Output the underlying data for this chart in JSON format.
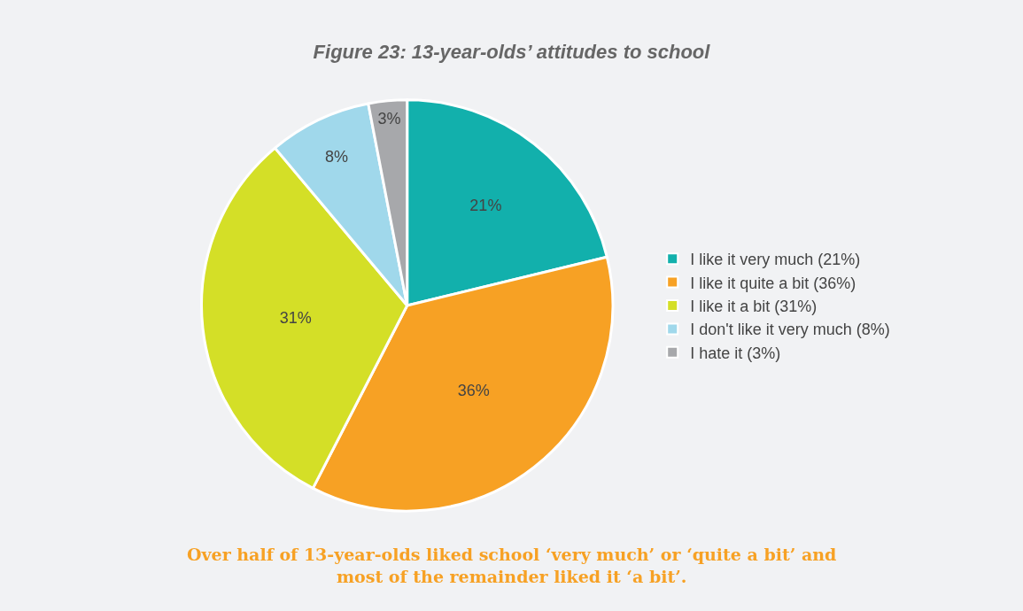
{
  "chart_data": {
    "type": "pie",
    "title": "Figure 23: 13-year-olds’ attitudes to school",
    "categories": [
      "I like it very much (21%)",
      "I like it quite a bit (36%)",
      "I like it a bit (31%)",
      "I don't like it very much (8%)",
      "I hate it (3%)"
    ],
    "values": [
      21,
      36,
      31,
      8,
      3
    ],
    "value_labels": [
      "21%",
      "36%",
      "31%",
      "8%",
      "3%"
    ],
    "colors": [
      "#12b0ac",
      "#f7a124",
      "#d4df27",
      "#a0d8eb",
      "#a7a8ab"
    ],
    "legend": "right",
    "annotations": [
      "Over half of 13-year-olds liked school ‘very much’ or ‘quite a bit’ and\nmost of the remainder liked it ‘a bit’."
    ]
  }
}
